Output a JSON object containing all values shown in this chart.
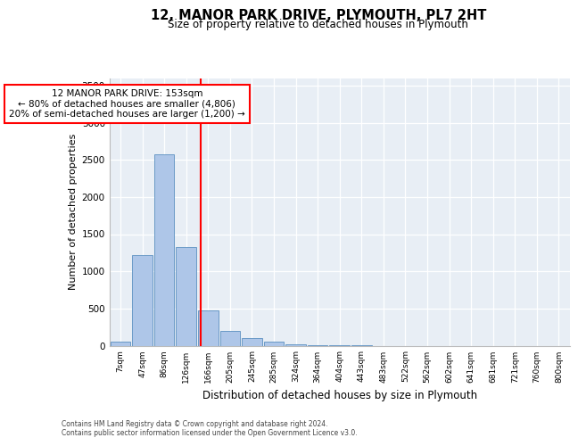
{
  "title1": "12, MANOR PARK DRIVE, PLYMOUTH, PL7 2HT",
  "title2": "Size of property relative to detached houses in Plymouth",
  "xlabel": "Distribution of detached houses by size in Plymouth",
  "ylabel": "Number of detached properties",
  "bar_labels": [
    "7sqm",
    "47sqm",
    "86sqm",
    "126sqm",
    "166sqm",
    "205sqm",
    "245sqm",
    "285sqm",
    "324sqm",
    "364sqm",
    "404sqm",
    "443sqm",
    "483sqm",
    "522sqm",
    "562sqm",
    "602sqm",
    "641sqm",
    "681sqm",
    "721sqm",
    "760sqm",
    "800sqm"
  ],
  "bar_values": [
    50,
    1220,
    2580,
    1330,
    470,
    200,
    105,
    50,
    15,
    5,
    2,
    1,
    0,
    0,
    0,
    0,
    0,
    0,
    0,
    0,
    0
  ],
  "bar_color": "#aec6e8",
  "bar_edgecolor": "#5a8fc0",
  "annotation_line1": "12 MANOR PARK DRIVE: 153sqm",
  "annotation_line2": "← 80% of detached houses are smaller (4,806)",
  "annotation_line3": "20% of semi-detached houses are larger (1,200) →",
  "ylim": [
    0,
    3600
  ],
  "yticks": [
    0,
    500,
    1000,
    1500,
    2000,
    2500,
    3000,
    3500
  ],
  "bg_color": "#e8eef5",
  "footer1": "Contains HM Land Registry data © Crown copyright and database right 2024.",
  "footer2": "Contains public sector information licensed under the Open Government Licence v3.0."
}
